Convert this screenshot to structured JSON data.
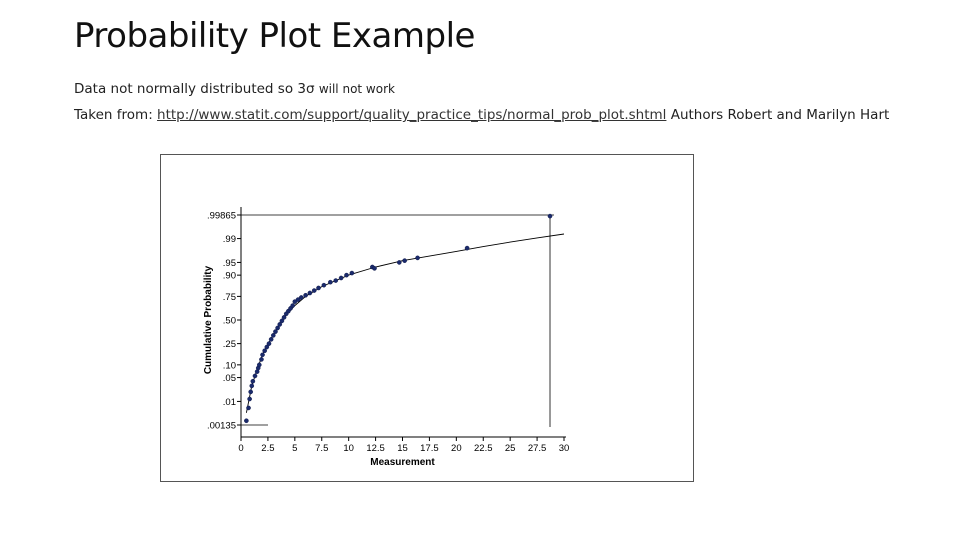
{
  "slide": {
    "title": "Probability Plot Example",
    "line1_text": "Data not normally distributed so 3σ",
    "line1_suffix": "will not work",
    "line2_prefix": "Taken from: ",
    "line2_link": "http://www.statit.com/support/quality_practice_tips/normal_prob_plot.shtml",
    "line2_suffix": " Authors Robert and Marilyn Hart"
  },
  "chart_data": {
    "type": "scatter",
    "title": "",
    "xlabel": "Measurement",
    "ylabel": "Cumulative Probability",
    "xlim": [
      0,
      30
    ],
    "x_ticks": [
      0,
      2.5,
      5,
      7.5,
      10,
      12.5,
      15,
      17.5,
      20,
      22.5,
      25,
      27.5,
      30
    ],
    "x_tick_labels": [
      "0",
      "2.5",
      "5",
      "7.5",
      "10",
      "12.5",
      "15",
      "17.5",
      "20",
      "22.5",
      "25",
      "27.5",
      "30"
    ],
    "y_ticks": [
      0.00135,
      0.01,
      0.05,
      0.1,
      0.25,
      0.5,
      0.75,
      0.9,
      0.95,
      0.99,
      0.99865
    ],
    "y_tick_labels": [
      ".00135",
      ".01",
      ".05",
      ".10",
      ".25",
      ".50",
      ".75",
      ".90",
      ".95",
      ".99",
      ".99865"
    ],
    "y_scale": "normal-probability",
    "grid": false,
    "reference_line": "fitted curve",
    "points": [
      [
        0.5,
        0.002
      ],
      [
        0.7,
        0.006
      ],
      [
        0.8,
        0.012
      ],
      [
        0.9,
        0.02
      ],
      [
        1.0,
        0.03
      ],
      [
        1.1,
        0.04
      ],
      [
        1.3,
        0.055
      ],
      [
        1.5,
        0.07
      ],
      [
        1.6,
        0.085
      ],
      [
        1.7,
        0.1
      ],
      [
        1.9,
        0.13
      ],
      [
        2.0,
        0.16
      ],
      [
        2.2,
        0.19
      ],
      [
        2.4,
        0.22
      ],
      [
        2.6,
        0.25
      ],
      [
        2.8,
        0.29
      ],
      [
        3.0,
        0.33
      ],
      [
        3.2,
        0.37
      ],
      [
        3.4,
        0.41
      ],
      [
        3.6,
        0.45
      ],
      [
        3.8,
        0.49
      ],
      [
        4.0,
        0.53
      ],
      [
        4.2,
        0.57
      ],
      [
        4.4,
        0.6
      ],
      [
        4.6,
        0.63
      ],
      [
        4.8,
        0.66
      ],
      [
        5.0,
        0.7
      ],
      [
        5.3,
        0.72
      ],
      [
        5.6,
        0.74
      ],
      [
        6.0,
        0.76
      ],
      [
        6.4,
        0.78
      ],
      [
        6.8,
        0.8
      ],
      [
        7.2,
        0.82
      ],
      [
        7.7,
        0.84
      ],
      [
        8.3,
        0.86
      ],
      [
        8.8,
        0.87
      ],
      [
        9.3,
        0.885
      ],
      [
        9.8,
        0.9
      ],
      [
        10.3,
        0.91
      ],
      [
        12.2,
        0.935
      ],
      [
        12.4,
        0.93
      ],
      [
        14.7,
        0.95
      ],
      [
        15.2,
        0.955
      ],
      [
        16.4,
        0.962
      ],
      [
        21.0,
        0.98
      ],
      [
        28.7,
        0.9985
      ]
    ],
    "fit_curve": [
      [
        0.5,
        0.004
      ],
      [
        1.0,
        0.03
      ],
      [
        1.5,
        0.08
      ],
      [
        2.0,
        0.16
      ],
      [
        3.0,
        0.34
      ],
      [
        4.0,
        0.53
      ],
      [
        5.0,
        0.66
      ],
      [
        6.0,
        0.75
      ],
      [
        7.5,
        0.83
      ],
      [
        10.0,
        0.9
      ],
      [
        12.5,
        0.935
      ],
      [
        15.0,
        0.955
      ],
      [
        17.5,
        0.966
      ],
      [
        20.0,
        0.975
      ],
      [
        22.5,
        0.982
      ],
      [
        25.0,
        0.987
      ],
      [
        27.5,
        0.9905
      ],
      [
        30.0,
        0.993
      ]
    ]
  }
}
